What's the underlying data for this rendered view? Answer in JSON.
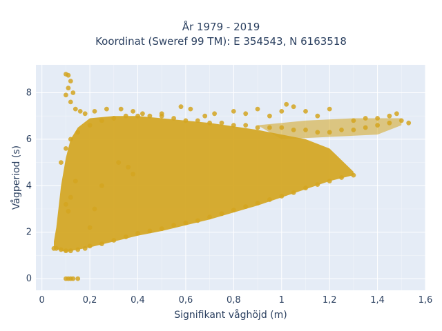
{
  "chart_data": {
    "type": "scatter",
    "title": "År 1979 - 2019",
    "subtitle": "Koordinat (Sweref 99 TM): E 354543, N 6163518",
    "xlabel": "Signifikant våghöjd (m)",
    "ylabel": "Vågperiod (s)",
    "xlim": [
      -0.025,
      1.6
    ],
    "ylim": [
      -0.5,
      9.2
    ],
    "xticks": [
      0,
      0.2,
      0.4,
      0.6,
      0.8,
      1,
      1.2,
      1.4,
      1.6
    ],
    "xtick_labels": [
      "0",
      "0,2",
      "0,4",
      "0,6",
      "0,8",
      "1",
      "1,2",
      "1,4",
      "1,6"
    ],
    "yticks": [
      0,
      2,
      4,
      6,
      8
    ],
    "ytick_labels": [
      "0",
      "2",
      "4",
      "6",
      "8"
    ],
    "grid": true,
    "marker_color": "#d4a520",
    "background_color": "#e5ecf6",
    "series": [
      {
        "x": [
          0.05,
          0.06,
          0.08,
          0.1,
          0.12,
          0.15,
          0.18,
          0.2,
          0.25,
          0.3,
          0.35,
          0.4,
          0.45,
          0.5,
          0.55,
          0.6,
          0.65,
          0.7,
          0.75,
          0.8,
          0.85,
          0.9,
          0.95,
          1.0,
          1.05,
          1.1,
          1.15,
          1.2,
          1.25,
          1.3,
          0.08,
          0.1,
          0.12,
          0.15,
          0.2,
          0.25,
          0.3,
          0.35,
          0.4,
          0.45,
          0.5,
          0.55,
          0.6,
          0.65,
          0.7,
          0.75,
          0.8,
          0.85,
          0.9,
          0.95,
          1.0,
          1.05,
          1.1,
          1.15,
          1.2,
          1.25,
          1.3,
          1.35,
          1.4,
          1.45,
          1.5,
          1.53,
          0.1,
          0.11,
          0.12,
          0.11,
          0.13,
          0.1,
          0.12,
          0.14,
          0.16,
          0.18,
          0.22,
          0.27,
          0.33,
          0.38,
          0.42,
          0.5,
          0.58,
          0.62,
          0.68,
          0.72,
          0.8,
          0.85,
          0.9,
          0.95,
          1.0,
          1.02,
          1.05,
          1.1,
          1.15,
          1.2,
          1.3,
          1.35,
          1.4,
          1.45,
          1.48,
          0.1,
          0.11,
          0.13,
          0.12,
          0.15,
          0.1,
          0.12,
          0.11,
          0.14,
          0.2,
          0.22,
          0.25,
          0.32,
          0.36,
          0.38
        ],
        "y": [
          1.3,
          1.3,
          1.25,
          1.2,
          1.2,
          1.25,
          1.3,
          1.4,
          1.5,
          1.65,
          1.8,
          1.95,
          2.05,
          2.15,
          2.3,
          2.4,
          2.5,
          2.65,
          2.8,
          2.95,
          3.1,
          3.25,
          3.4,
          3.55,
          3.7,
          3.9,
          4.05,
          4.2,
          4.35,
          4.45,
          5.0,
          5.6,
          6.0,
          6.3,
          6.6,
          6.8,
          6.9,
          7.0,
          7.0,
          7.0,
          7.0,
          6.9,
          6.8,
          6.8,
          6.7,
          6.7,
          6.6,
          6.6,
          6.5,
          6.5,
          6.5,
          6.4,
          6.4,
          6.3,
          6.3,
          6.4,
          6.4,
          6.5,
          6.6,
          6.7,
          6.8,
          6.7,
          8.8,
          8.75,
          8.5,
          8.2,
          8.0,
          7.9,
          7.6,
          7.3,
          7.2,
          7.1,
          7.2,
          7.3,
          7.3,
          7.2,
          7.1,
          7.1,
          7.4,
          7.3,
          7.0,
          7.1,
          7.2,
          7.1,
          7.3,
          7.0,
          7.2,
          7.5,
          7.4,
          7.2,
          7.0,
          7.3,
          6.8,
          6.9,
          6.9,
          7.0,
          7.1,
          0,
          0,
          0,
          0,
          0,
          3.2,
          3.5,
          2.9,
          4.2,
          2.2,
          3.0,
          4.0,
          5.0,
          4.8,
          4.5
        ]
      }
    ]
  }
}
